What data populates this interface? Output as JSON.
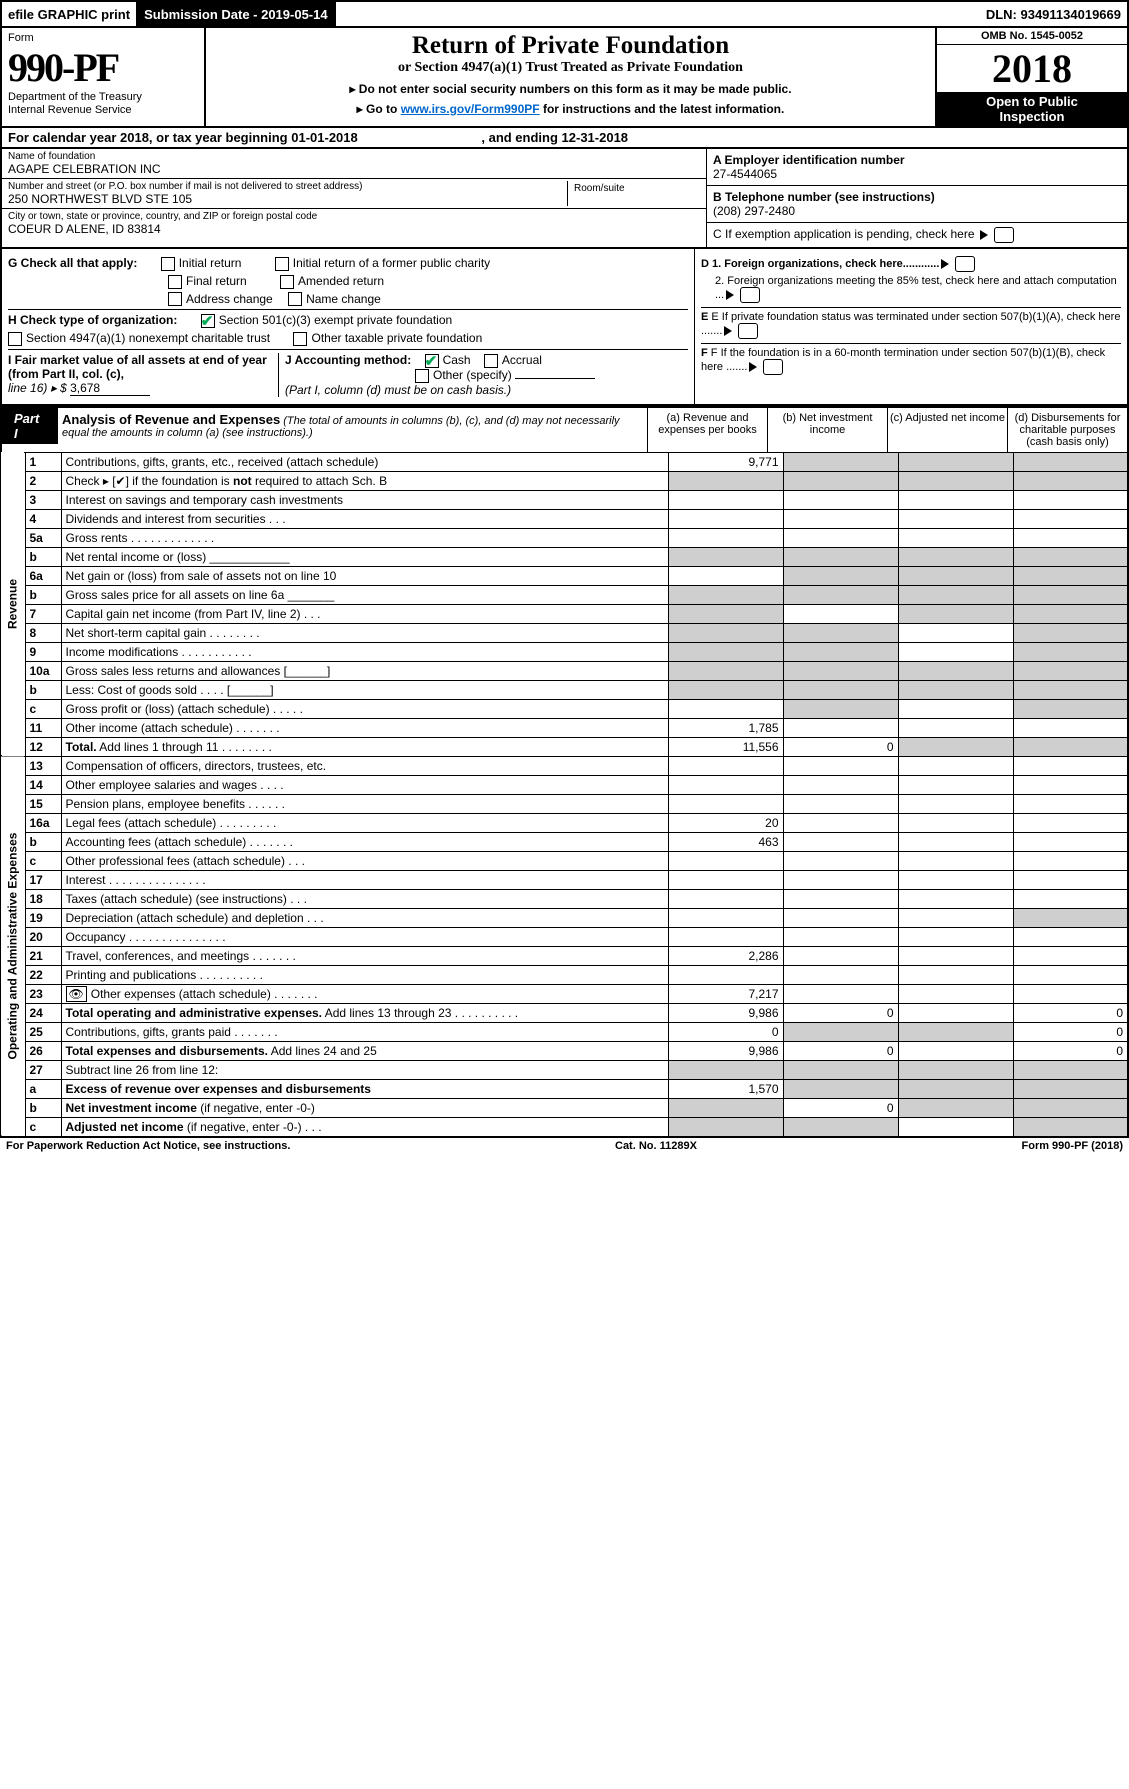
{
  "topbar": {
    "print": "efile GRAPHIC print",
    "subdate_lbl": "Submission Date - 2019-05-14",
    "dln": "DLN: 93491134019669"
  },
  "header": {
    "form": "Form",
    "num": "990-PF",
    "dept": "Department of the Treasury",
    "irs": "Internal Revenue Service",
    "title": "Return of Private Foundation",
    "subt": "or Section 4947(a)(1) Trust Treated as Private Foundation",
    "instr1": "▸ Do not enter social security numbers on this form as it may be made public.",
    "instr2_pre": "▸ Go to ",
    "instr2_link": "www.irs.gov/Form990PF",
    "instr2_post": " for instructions and the latest information.",
    "omb": "OMB No. 1545-0052",
    "year": "2018",
    "open1": "Open to Public",
    "open2": "Inspection"
  },
  "cal": {
    "pre": "For calendar year 2018, or tax year beginning ",
    "begin": "01-01-2018",
    "mid": ", and ending ",
    "end": "12-31-2018"
  },
  "info": {
    "name_lbl": "Name of foundation",
    "name": "AGAPE CELEBRATION INC",
    "addr_lbl": "Number and street (or P.O. box number if mail is not delivered to street address)",
    "addr": "250 NORTHWEST BLVD STE 105",
    "room_lbl": "Room/suite",
    "city_lbl": "City or town, state or province, country, and ZIP or foreign postal code",
    "city": "COEUR D ALENE, ID  83814",
    "a_lbl": "A Employer identification number",
    "a": "27-4544065",
    "b_lbl": "B Telephone number (see instructions)",
    "b": "(208) 297-2480",
    "c_lbl": "C If exemption application is pending, check here",
    "d1": "D 1. Foreign organizations, check here............",
    "d2": "2. Foreign organizations meeting the 85% test, check here and attach computation ...",
    "e": "E  If private foundation status was terminated under section 507(b)(1)(A), check here .......",
    "f": "F  If the foundation is in a 60-month termination under section 507(b)(1)(B), check here ......."
  },
  "g": {
    "lbl": "G Check all that apply:",
    "ir": "Initial return",
    "irf": "Initial return of a former public charity",
    "fr": "Final return",
    "ar": "Amended return",
    "ac": "Address change",
    "nc": "Name change"
  },
  "h": {
    "lbl": "H Check type of organization:",
    "s501": "Section 501(c)(3) exempt private foundation",
    "s4947": "Section 4947(a)(1) nonexempt charitable trust",
    "other": "Other taxable private foundation"
  },
  "i": {
    "lbl": "I Fair market value of all assets at end of year (from Part II, col. (c),",
    "line": "line 16) ▸ $",
    "val": "3,678"
  },
  "j": {
    "lbl": "J Accounting method:",
    "cash": "Cash",
    "acc": "Accrual",
    "oth": "Other (specify)",
    "note": "(Part I, column (d) must be on cash basis.)"
  },
  "part1": {
    "lbl": "Part I",
    "title": "Analysis of Revenue and Expenses",
    "sub": "(The total of amounts in columns (b), (c), and (d) may not necessarily equal the amounts in column (a) (see instructions).)",
    "cola": "(a)   Revenue and expenses per books",
    "colb": "(b)  Net investment income",
    "colc": "(c)  Adjusted net income",
    "cold": "(d)  Disbursements for charitable purposes (cash basis only)"
  },
  "side": {
    "rev": "Revenue",
    "exp": "Operating and Administrative Expenses"
  },
  "rows": [
    {
      "n": "1",
      "d": "Contributions, gifts, grants, etc., received (attach schedule)",
      "a": "9,771",
      "bs": 1,
      "cs": 1,
      "ds": 1
    },
    {
      "n": "2",
      "d": "Check ▸ [✔] if the foundation is <b>not</b> required to attach Sch. B",
      "as": 1,
      "bs": 1,
      "cs": 1,
      "ds": 1
    },
    {
      "n": "3",
      "d": "Interest on savings and temporary cash investments"
    },
    {
      "n": "4",
      "d": "Dividends and interest from securities   .   .   ."
    },
    {
      "n": "5a",
      "d": "Gross rents    .  .  .  .  .  .  .  .  .  .  .  .  ."
    },
    {
      "n": "b",
      "d": "Net rental income or (loss)  ____________",
      "as": 1,
      "bs": 1,
      "cs": 1,
      "ds": 1
    },
    {
      "n": "6a",
      "d": "Net gain or (loss) from sale of assets not on line 10",
      "bs": 1,
      "cs": 1,
      "ds": 1
    },
    {
      "n": "b",
      "d": "Gross sales price for all assets on line 6a _______",
      "as": 1,
      "bs": 1,
      "cs": 1,
      "ds": 1
    },
    {
      "n": "7",
      "d": "Capital gain net income (from Part IV, line 2)    .   .   .",
      "as": 1,
      "cs": 1,
      "ds": 1
    },
    {
      "n": "8",
      "d": "Net short-term capital gain   .  .  .  .  .  .  .  .",
      "as": 1,
      "bs": 1,
      "ds": 1
    },
    {
      "n": "9",
      "d": "Income modifications  .  .  .  .  .  .  .  .  .  .  .",
      "as": 1,
      "bs": 1,
      "ds": 1
    },
    {
      "n": "10a",
      "d": "Gross sales less returns and allowances  [______]",
      "as": 1,
      "bs": 1,
      "cs": 1,
      "ds": 1
    },
    {
      "n": "b",
      "d": "Less: Cost of goods sold      .   .   .   .   [______]",
      "as": 1,
      "bs": 1,
      "cs": 1,
      "ds": 1
    },
    {
      "n": "c",
      "d": "Gross profit or (loss) (attach schedule)    .  .  .  .  .",
      "bs": 1,
      "ds": 1
    },
    {
      "n": "11",
      "d": "Other income (attach schedule)    .  .  .  .  .  .  .",
      "a": "1,785"
    },
    {
      "n": "12",
      "d": "<b>Total.</b> Add lines 1 through 11    .  .  .  .  .  .  .  .",
      "a": "11,556",
      "b": "0",
      "cs": 1,
      "ds": 1
    },
    {
      "n": "13",
      "d": "Compensation of officers, directors, trustees, etc."
    },
    {
      "n": "14",
      "d": "Other employee salaries and wages    .  .  .  ."
    },
    {
      "n": "15",
      "d": "Pension plans, employee benefits   .  .  .  .  .  ."
    },
    {
      "n": "16a",
      "d": "Legal fees (attach schedule)  .  .  .  .  .  .  .  .  .",
      "a": "20"
    },
    {
      "n": "b",
      "d": "Accounting fees (attach schedule)   .  .  .  .  .  .  .",
      "a": "463"
    },
    {
      "n": "c",
      "d": "Other professional fees (attach schedule)    .  .  ."
    },
    {
      "n": "17",
      "d": "Interest   .  .  .  .  .  .  .  .  .  .  .  .  .  .  ."
    },
    {
      "n": "18",
      "d": "Taxes (attach schedule) (see instructions)    .  .  ."
    },
    {
      "n": "19",
      "d": "Depreciation (attach schedule) and depletion    .  .  .",
      "ds": 1
    },
    {
      "n": "20",
      "d": "Occupancy  .  .  .  .  .  .  .  .  .  .  .  .  .  .  ."
    },
    {
      "n": "21",
      "d": "Travel, conferences, and meetings  .  .  .  .  .  .  .",
      "a": "2,286"
    },
    {
      "n": "22",
      "d": "Printing and publications  .  .  .  .  .  .  .  .  .  ."
    },
    {
      "n": "23",
      "d": "Other expenses (attach schedule)   .  .  .  .  .  .  .",
      "a": "7,217",
      "icon": 1
    },
    {
      "n": "24",
      "d": "<b>Total operating and administrative expenses.</b> Add lines 13 through 23   .  .  .  .  .  .  .  .  .  .",
      "a": "9,986",
      "b": "0",
      "d4": "0"
    },
    {
      "n": "25",
      "d": "Contributions, gifts, grants paid     .  .  .  .  .  .  .",
      "a": "0",
      "bs": 1,
      "cs": 1,
      "d4": "0"
    },
    {
      "n": "26",
      "d": "<b>Total expenses and disbursements.</b> Add lines 24 and 25",
      "a": "9,986",
      "b": "0",
      "d4": "0"
    },
    {
      "n": "27",
      "d": "Subtract line 26 from line 12:",
      "as": 1,
      "bs": 1,
      "cs": 1,
      "ds": 1
    },
    {
      "n": "a",
      "d": "<b>Excess of revenue over expenses and disbursements</b>",
      "a": "1,570",
      "bs": 1,
      "cs": 1,
      "ds": 1
    },
    {
      "n": "b",
      "d": "<b>Net investment income</b> (if negative, enter -0-)",
      "as": 1,
      "b": "0",
      "cs": 1,
      "ds": 1
    },
    {
      "n": "c",
      "d": "<b>Adjusted net income</b> (if negative, enter -0-)   .   .   .",
      "as": 1,
      "bs": 1,
      "ds": 1
    }
  ],
  "footer": {
    "pra": "For Paperwork Reduction Act Notice, see instructions.",
    "cat": "Cat. No. 11289X",
    "form": "Form 990-PF (2018)"
  }
}
